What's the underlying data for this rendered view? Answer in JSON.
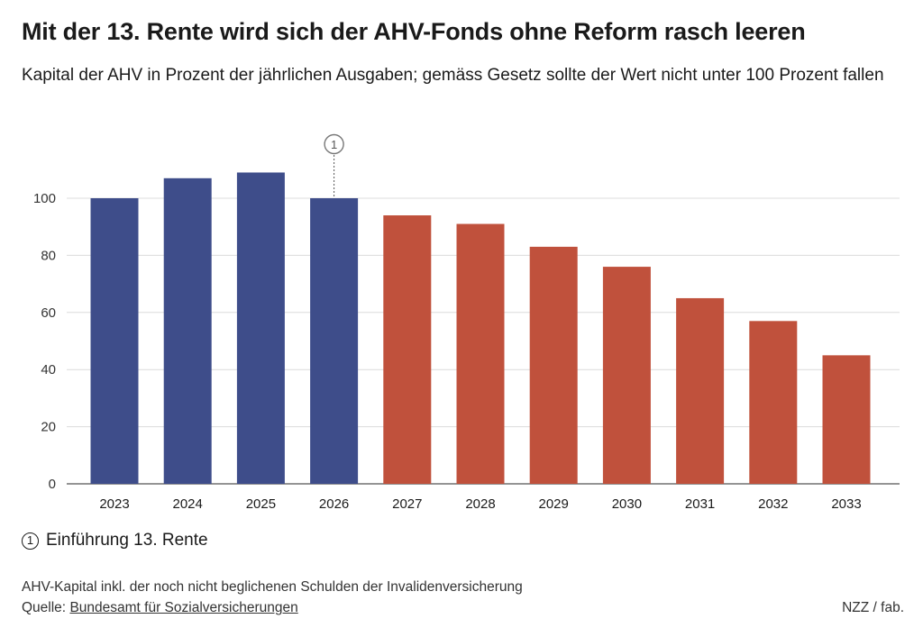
{
  "title": "Mit der 13. Rente wird sich der AHV-Fonds ohne Reform rasch leeren",
  "subtitle": "Kapital der AHV in Prozent der jährlichen Ausgaben; gemäss Gesetz sollte der Wert nicht unter 100 Prozent fallen",
  "colors": {
    "historic": "#3e4d8a",
    "projection": "#c0513c",
    "grid": "#dcdcdc",
    "axis": "#555555"
  },
  "chart_data": {
    "type": "bar",
    "title": "Mit der 13. Rente wird sich der AHV-Fonds ohne Reform rasch leeren",
    "subtitle": "Kapital der AHV in Prozent der jährlichen Ausgaben; gemäss Gesetz sollte der Wert nicht unter 100 Prozent fallen",
    "categories": [
      "2023",
      "2024",
      "2025",
      "2026",
      "2027",
      "2028",
      "2029",
      "2030",
      "2031",
      "2032",
      "2033"
    ],
    "values": [
      100,
      107,
      109,
      100,
      94,
      91,
      83,
      76,
      65,
      57,
      45
    ],
    "bar_colors": [
      "#3e4d8a",
      "#3e4d8a",
      "#3e4d8a",
      "#3e4d8a",
      "#c0513c",
      "#c0513c",
      "#c0513c",
      "#c0513c",
      "#c0513c",
      "#c0513c",
      "#c0513c"
    ],
    "ylim": [
      0,
      110
    ],
    "yticks": [
      0,
      20,
      40,
      60,
      80,
      100
    ],
    "xlabel": "",
    "ylabel": "",
    "grid": true,
    "annotations": [
      {
        "marker": "1",
        "category": "2026",
        "text": "Einführung 13. Rente"
      }
    ]
  },
  "note": {
    "marker": "1",
    "text": "Einführung 13. Rente"
  },
  "footnote": "AHV-Kapital inkl. der noch nicht beglichenen Schulden der Invalidenversicherung",
  "source": {
    "label": "Quelle:",
    "link": "Bundesamt für Sozialversicherungen"
  },
  "credit": "NZZ / fab."
}
